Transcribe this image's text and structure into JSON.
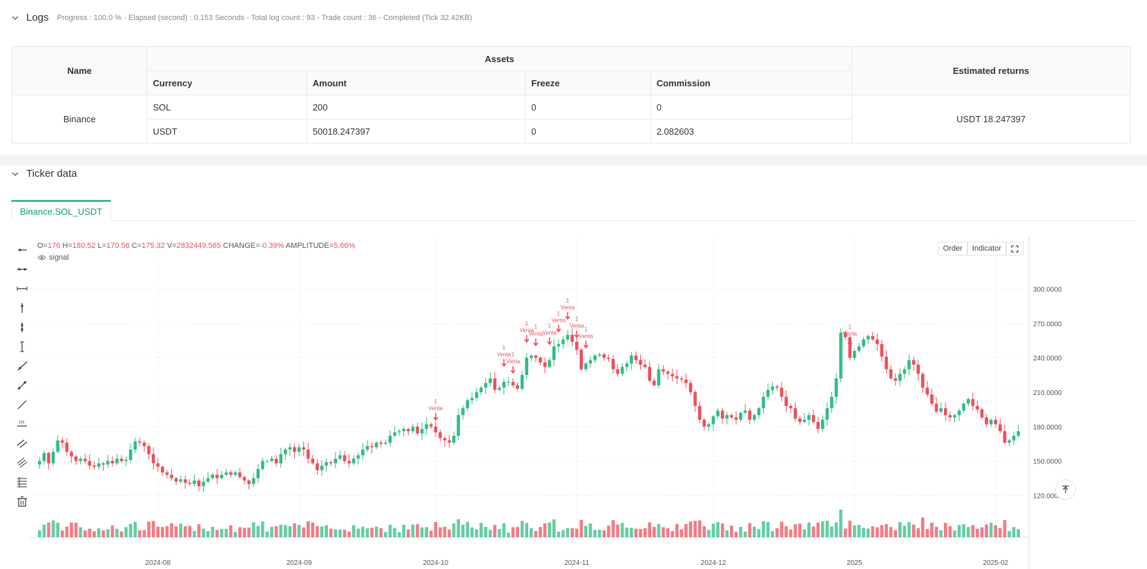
{
  "logs": {
    "title": "Logs",
    "status": "Progress : 100.0 % - Elapsed (second) : 0.153  Seconds - Total log count : 93 - Trade count : 36 - Completed (Tick 32.42KB)"
  },
  "assets_table": {
    "name_header": "Name",
    "assets_header": "Assets",
    "returns_header": "Estimated returns",
    "columns": [
      "Currency",
      "Amount",
      "Freeze",
      "Commission"
    ],
    "exchange": "Binance",
    "rows": [
      {
        "currency": "SOL",
        "amount": "200",
        "freeze": "0",
        "commission": "0"
      },
      {
        "currency": "USDT",
        "amount": "50018.247397",
        "freeze": "0",
        "commission": "2.082603"
      }
    ],
    "estimated_returns": "USDT 18.247397"
  },
  "ticker": {
    "title": "Ticker data",
    "tab": "Binance.SOL_USDT",
    "ohlc": {
      "o_label": "O=",
      "o": "176",
      "h_label": "H=",
      "h": "180.52",
      "l_label": "L=",
      "l": "170.56",
      "c_label": "C=",
      "c": "175.32",
      "v_label": "V=",
      "v": "2832449.565",
      "change_label": "CHANGE=",
      "change": "-0.39%",
      "amp_label": "AMPLITUDE=",
      "amp": "5.66%"
    },
    "signal_label": "signal",
    "buttons": {
      "order": "Order",
      "indicator": "Indicator"
    },
    "colors": {
      "up": "#2ebd85",
      "down": "#f04d5b",
      "accent": "#0aa078"
    },
    "tools": [
      "horizontal-ray-icon",
      "horizontal-segment-icon",
      "horizontal-line-icon",
      "vertical-ray-icon",
      "vertical-segment-icon",
      "vertical-line-icon",
      "trend-ray-icon",
      "trend-segment-icon",
      "trend-line-icon",
      "price-label-icon",
      "parallel-channel-icon",
      "fib-channel-icon",
      "fib-levels-icon",
      "delete-icon"
    ]
  },
  "chart_data": {
    "type": "candlestick",
    "y_ticks": [
      "300.0000",
      "270.0000",
      "240.0000",
      "210.0000",
      "180.0000",
      "150.0000",
      "120.0000"
    ],
    "y_tick_values": [
      300,
      270,
      240,
      210,
      180,
      150,
      120
    ],
    "ylim": [
      104,
      328
    ],
    "x_ticks": [
      {
        "label": "2024-08",
        "day": 26
      },
      {
        "label": "2024-09",
        "day": 57
      },
      {
        "label": "2024-10",
        "day": 87
      },
      {
        "label": "2024-11",
        "day": 118
      },
      {
        "label": "2024-12",
        "day": 148
      },
      {
        "label": "2025",
        "day": 179
      },
      {
        "label": "2025-02",
        "day": 210
      }
    ],
    "signal_text": "Venta",
    "signal_count": "1",
    "signal_days": [
      87,
      102,
      104,
      107,
      109,
      112,
      114,
      116,
      118,
      120,
      178
    ],
    "closes": [
      150,
      157,
      148,
      158,
      168,
      166,
      158,
      154,
      150,
      152,
      150,
      146,
      145,
      148,
      147,
      150,
      148,
      152,
      150,
      151,
      160,
      167,
      166,
      163,
      156,
      148,
      145,
      140,
      138,
      135,
      132,
      134,
      131,
      130,
      133,
      128,
      132,
      135,
      138,
      135,
      138,
      140,
      138,
      140,
      136,
      133,
      130,
      135,
      143,
      150,
      150,
      152,
      148,
      156,
      160,
      162,
      158,
      162,
      160,
      152,
      148,
      142,
      146,
      149,
      148,
      152,
      155,
      150,
      148,
      152,
      155,
      160,
      163,
      162,
      166,
      165,
      166,
      172,
      175,
      176,
      178,
      176,
      180,
      174,
      178,
      182,
      180,
      175,
      170,
      168,
      166,
      172,
      190,
      196,
      203,
      205,
      210,
      214,
      218,
      222,
      212,
      214,
      219,
      219,
      216,
      213,
      225,
      240,
      242,
      240,
      236,
      232,
      238,
      250,
      252,
      256,
      260,
      254,
      247,
      230,
      235,
      238,
      242,
      243,
      240,
      239,
      230,
      226,
      232,
      235,
      242,
      238,
      234,
      232,
      220,
      216,
      230,
      228,
      226,
      224,
      222,
      221,
      218,
      210,
      198,
      186,
      180,
      182,
      189,
      194,
      187,
      190,
      188,
      186,
      192,
      194,
      186,
      190,
      196,
      206,
      212,
      215,
      214,
      206,
      198,
      196,
      187,
      184,
      186,
      190,
      184,
      178,
      186,
      196,
      206,
      222,
      262,
      258,
      240,
      246,
      250,
      256,
      259,
      256,
      252,
      241,
      230,
      222,
      220,
      226,
      230,
      238,
      234,
      226,
      214,
      208,
      200,
      193,
      196,
      190,
      188,
      190,
      194,
      200,
      204,
      198,
      195,
      188,
      182,
      186,
      182,
      176,
      166,
      168,
      172,
      176
    ],
    "volume_note": "volume bars at bottom, heights relative"
  }
}
